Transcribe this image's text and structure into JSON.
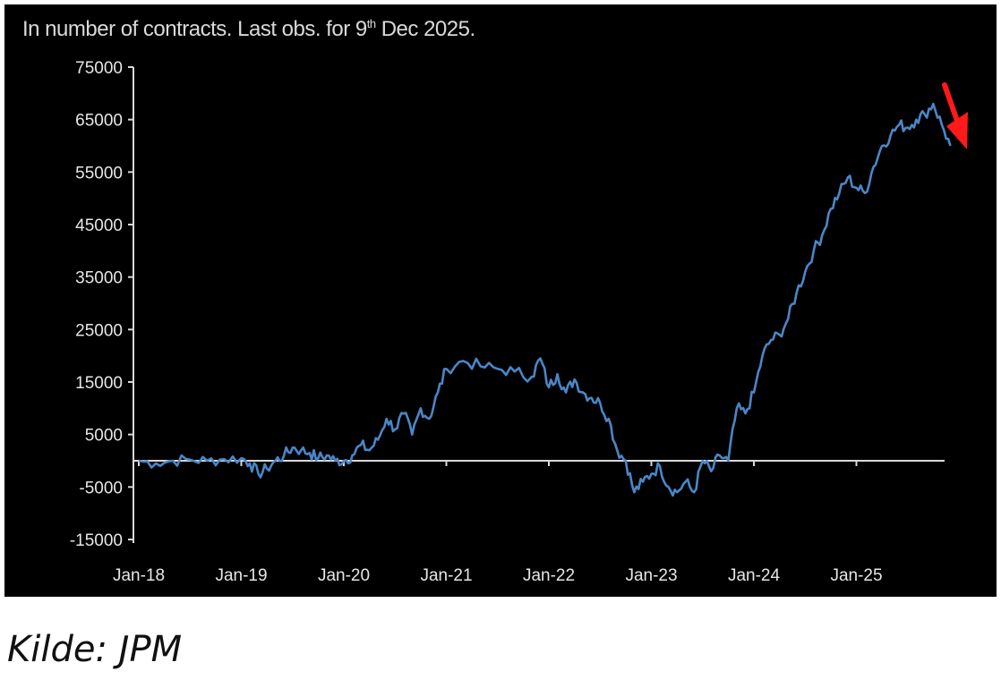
{
  "chart_data": {
    "type": "line",
    "title": "In number of contracts. Last obs. for 9",
    "title_superscript": "th",
    "title_suffix": " Dec 2025.",
    "xlabel": "",
    "ylabel": "",
    "x_tick_labels": [
      "Jan-18",
      "Jan-19",
      "Jan-20",
      "Jan-21",
      "Jan-22",
      "Jan-23",
      "Jan-24",
      "Jan-25"
    ],
    "y_tick_labels": [
      "75000",
      "65000",
      "55000",
      "45000",
      "35000",
      "25000",
      "15000",
      "5000",
      "-5000",
      "-15000"
    ],
    "ylim": [
      -15000,
      75000
    ],
    "xlim": [
      "2018-01",
      "2025-12"
    ],
    "grid": false,
    "line_color": "#4a86c8",
    "axis_color": "#d9d9d9",
    "arrow_color": "#ff1a1a",
    "annotation": "red-arrow-down",
    "series": [
      {
        "x": [
          "2018-01",
          "2018-03",
          "2018-05",
          "2018-07",
          "2018-09",
          "2018-11",
          "2019-01",
          "2019-02",
          "2019-03",
          "2019-04",
          "2019-05",
          "2019-06",
          "2019-07",
          "2019-08",
          "2019-09",
          "2019-10",
          "2019-11",
          "2019-12",
          "2020-01",
          "2020-02",
          "2020-03",
          "2020-04",
          "2020-05",
          "2020-06",
          "2020-07",
          "2020-08",
          "2020-09",
          "2020-10",
          "2020-11",
          "2020-12",
          "2021-01",
          "2021-03",
          "2021-05",
          "2021-07",
          "2021-09",
          "2021-11",
          "2021-12",
          "2022-01",
          "2022-02",
          "2022-03",
          "2022-04",
          "2022-05",
          "2022-06",
          "2022-07",
          "2022-08",
          "2022-09",
          "2022-10",
          "2022-11",
          "2022-12",
          "2023-01",
          "2023-02",
          "2023-03",
          "2023-04",
          "2023-05",
          "2023-06",
          "2023-07",
          "2023-08",
          "2023-09",
          "2023-10",
          "2023-11",
          "2023-12",
          "2024-01",
          "2024-02",
          "2024-03",
          "2024-04",
          "2024-05",
          "2024-06",
          "2024-07",
          "2024-08",
          "2024-09",
          "2024-10",
          "2024-11",
          "2024-12",
          "2025-01",
          "2025-02",
          "2025-03",
          "2025-04",
          "2025-05",
          "2025-06",
          "2025-07",
          "2025-08",
          "2025-09",
          "2025-10",
          "2025-11",
          "2025-12"
        ],
        "values": [
          0,
          -500,
          0,
          200,
          0,
          300,
          500,
          -500,
          -2500,
          -1500,
          0,
          1000,
          2500,
          2000,
          1500,
          500,
          1000,
          0,
          0,
          1000,
          3000,
          2000,
          4000,
          8000,
          6000,
          9000,
          5000,
          10000,
          8000,
          13000,
          17500,
          19000,
          18000,
          17500,
          17000,
          16000,
          19500,
          14000,
          16500,
          13000,
          15500,
          13000,
          12000,
          11000,
          8000,
          2000,
          0,
          -6000,
          -4000,
          -2500,
          -1000,
          -5000,
          -6000,
          -4000,
          -6000,
          0,
          -2000,
          1000,
          0,
          10000,
          9000,
          13000,
          20000,
          23000,
          24000,
          27000,
          32000,
          36000,
          40000,
          43000,
          48000,
          51000,
          54000,
          52000,
          51000,
          56000,
          60000,
          62000,
          64000,
          63500,
          65000,
          66000,
          68000,
          64000,
          60000
        ]
      }
    ]
  },
  "source": "Kilde: JPM"
}
